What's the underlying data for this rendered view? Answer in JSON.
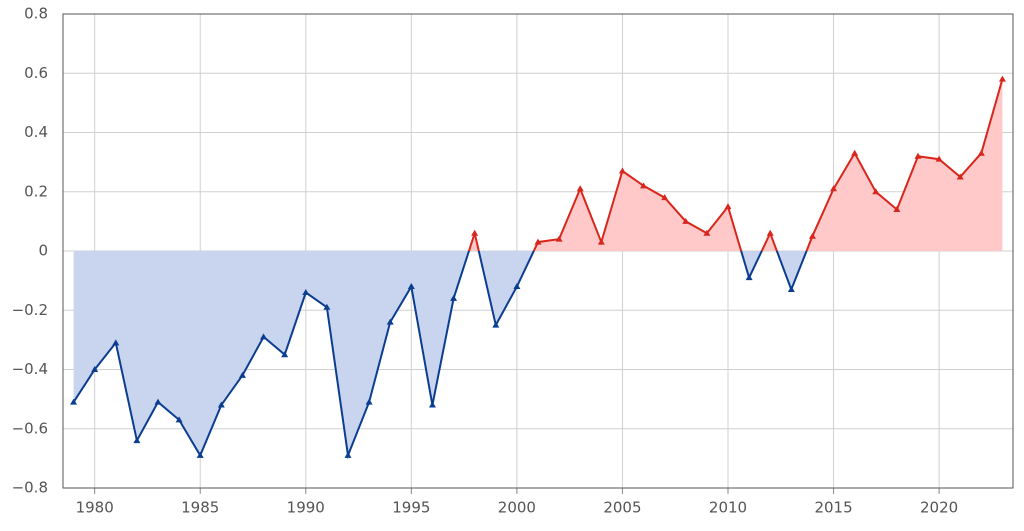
{
  "chart_data": {
    "type": "line",
    "x": [
      1979,
      1980,
      1981,
      1982,
      1983,
      1984,
      1985,
      1986,
      1987,
      1988,
      1989,
      1990,
      1991,
      1992,
      1993,
      1994,
      1995,
      1996,
      1997,
      1998,
      1999,
      2000,
      2001,
      2002,
      2003,
      2004,
      2005,
      2006,
      2007,
      2008,
      2009,
      2010,
      2011,
      2012,
      2013,
      2014,
      2015,
      2016,
      2017,
      2018,
      2019,
      2020,
      2021,
      2022,
      2023
    ],
    "values": [
      -0.51,
      -0.4,
      -0.31,
      -0.64,
      -0.51,
      -0.57,
      -0.69,
      -0.52,
      -0.42,
      -0.29,
      -0.35,
      -0.14,
      -0.19,
      -0.69,
      -0.51,
      -0.24,
      -0.12,
      -0.52,
      -0.16,
      0.06,
      -0.25,
      -0.12,
      0.03,
      0.04,
      0.21,
      0.03,
      0.27,
      0.22,
      0.18,
      0.1,
      0.06,
      0.15,
      -0.09,
      0.06,
      -0.13,
      0.05,
      0.21,
      0.33,
      0.2,
      0.14,
      0.32,
      0.31,
      0.25,
      0.33,
      0.58
    ],
    "color_positive": "#d9261c",
    "color_negative": "#0b3d91",
    "fill_positive": "#ffc9c9",
    "fill_negative": "#c9d5ee",
    "xlim": [
      1978.5,
      2023.5
    ],
    "ylim": [
      -0.8,
      0.8
    ],
    "xticks": [
      1980,
      1985,
      1990,
      1995,
      2000,
      2005,
      2010,
      2015,
      2020
    ],
    "yticks": [
      {
        "value": -0.8,
        "label": "−0.8"
      },
      {
        "value": -0.6,
        "label": "−0.6"
      },
      {
        "value": -0.4,
        "label": "−0.4"
      },
      {
        "value": -0.2,
        "label": "−0.2"
      },
      0,
      0.2,
      0.4,
      0.6,
      0.8
    ],
    "grid": true
  }
}
